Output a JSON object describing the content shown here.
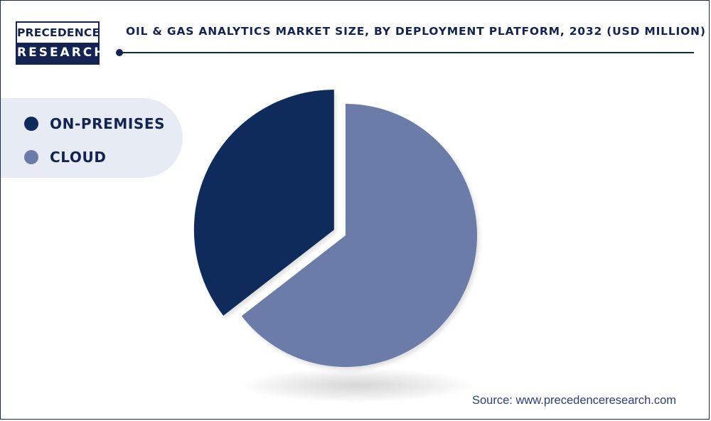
{
  "brand": {
    "logo_top": "PRECEDENCE",
    "logo_bottom": "RESEARCH"
  },
  "chart_data": {
    "type": "pie",
    "title": "OIL & GAS ANALYTICS MARKET SIZE, BY DEPLOYMENT PLATFORM, 2032 (USD MILLION)",
    "categories": [
      "ON-PREMISES",
      "CLOUD"
    ],
    "values": [
      35.5,
      64.5
    ],
    "colors": [
      "#0f2b5b",
      "#6b7ca9"
    ],
    "legend_position": "left",
    "exploded_slice": "ON-PREMISES"
  },
  "source": "Source: www.precedenceresearch.com",
  "colors": {
    "navy": "#142452",
    "legend_background": "#e7ecf4"
  }
}
